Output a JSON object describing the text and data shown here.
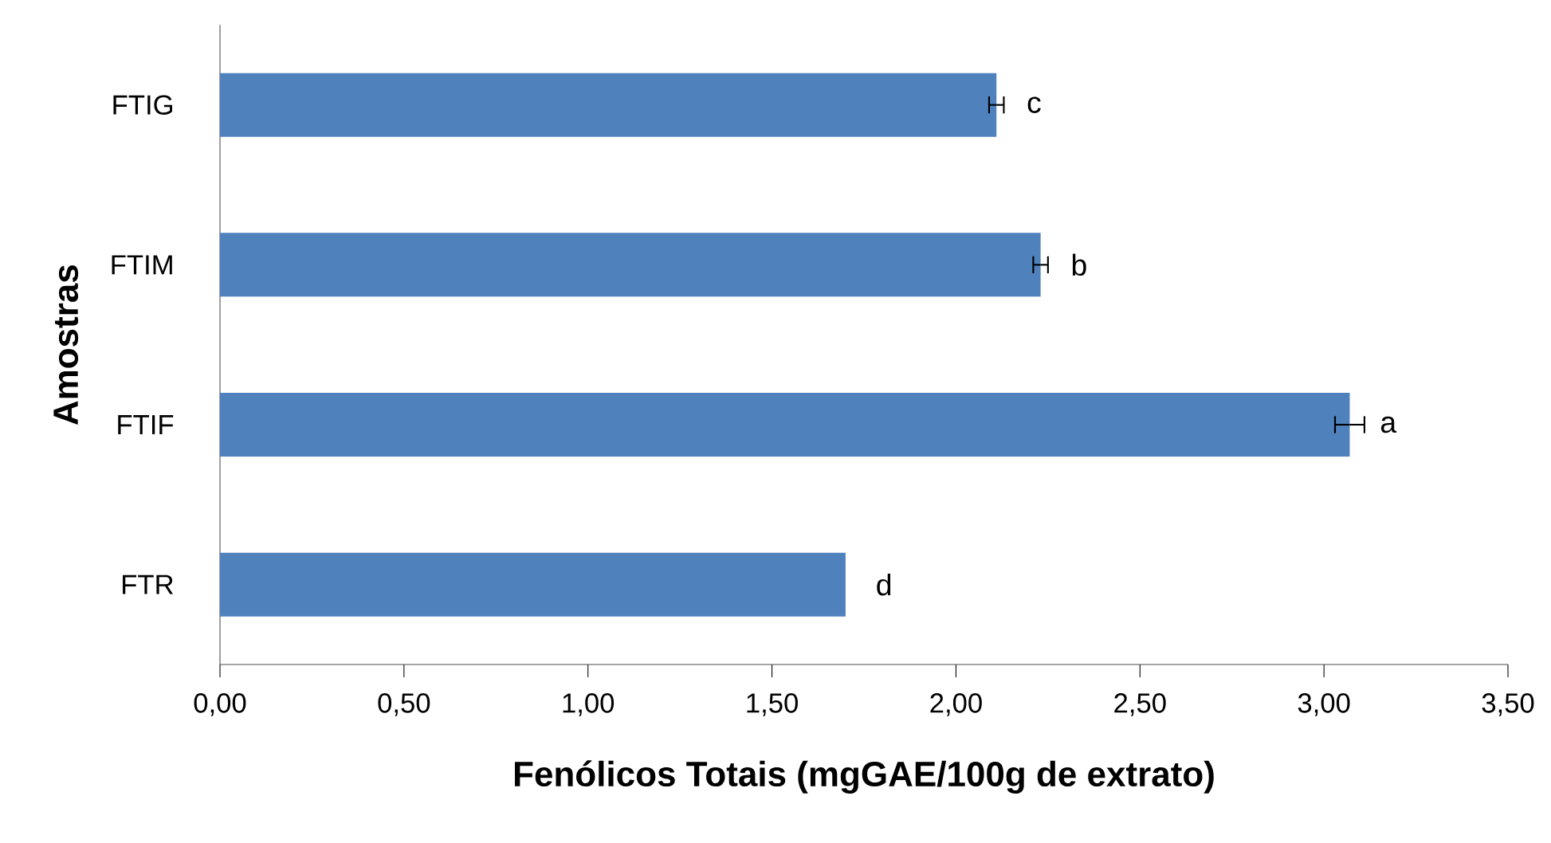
{
  "chart_data": {
    "type": "bar",
    "orientation": "horizontal",
    "xlabel": "Fenólicos Totais (mgGAE/100g de extrato)",
    "ylabel": "Amostras",
    "categories": [
      "FTIG",
      "FTIM",
      "FTIF",
      "FTR"
    ],
    "values": [
      2.11,
      2.23,
      3.07,
      1.7
    ],
    "errors": [
      0.02,
      0.02,
      0.04,
      null
    ],
    "color": "#4f81bd",
    "xlim": [
      0,
      3.5
    ],
    "xticks": [
      {
        "value": 0,
        "label": "0,00"
      },
      {
        "value": 0.5,
        "label": "0,50"
      },
      {
        "value": 1,
        "label": "1,00"
      },
      {
        "value": 1.5,
        "label": "1,50"
      },
      {
        "value": 2,
        "label": "2,00"
      },
      {
        "value": 2.5,
        "label": "2,50"
      },
      {
        "value": 3,
        "label": "3,00"
      },
      {
        "value": 3.5,
        "label": "3,50"
      }
    ],
    "annotations": [
      "c",
      "b",
      "a",
      "d"
    ],
    "grid": false
  }
}
